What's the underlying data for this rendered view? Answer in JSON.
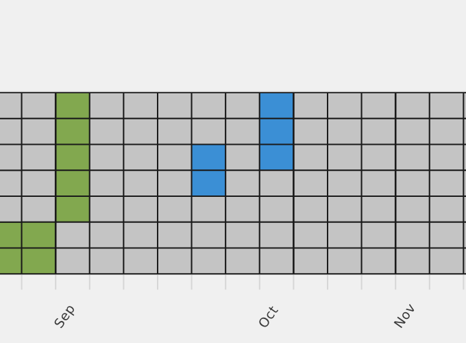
{
  "calendar": {
    "rows": 7,
    "columns": 14,
    "colors": {
      "background": "#f0f0f0",
      "empty_cell": "#c4c4c4",
      "border": "#1a1a1a",
      "green": "#82a84f",
      "blue": "#3b8fd5",
      "tick": "#d6d6d6"
    },
    "highlighted_cells": [
      {
        "column": 0,
        "row": 5,
        "color": "green"
      },
      {
        "column": 0,
        "row": 6,
        "color": "green"
      },
      {
        "column": 1,
        "row": 0,
        "color": "green"
      },
      {
        "column": 1,
        "row": 1,
        "color": "green"
      },
      {
        "column": 1,
        "row": 2,
        "color": "green"
      },
      {
        "column": 1,
        "row": 3,
        "color": "green"
      },
      {
        "column": 1,
        "row": 4,
        "color": "green"
      },
      {
        "column": 5,
        "row": 2,
        "color": "blue"
      },
      {
        "column": 5,
        "row": 3,
        "color": "blue"
      },
      {
        "column": 7,
        "row": 0,
        "color": "blue"
      },
      {
        "column": 7,
        "row": 1,
        "color": "blue"
      },
      {
        "column": 7,
        "row": 2,
        "color": "blue"
      }
    ],
    "month_boundary_columns": [
      1,
      8,
      11
    ],
    "month_labels": [
      {
        "text": "Sep",
        "column": 1
      },
      {
        "text": "Oct",
        "column": 7
      },
      {
        "text": "Nov",
        "column": 11
      }
    ]
  }
}
